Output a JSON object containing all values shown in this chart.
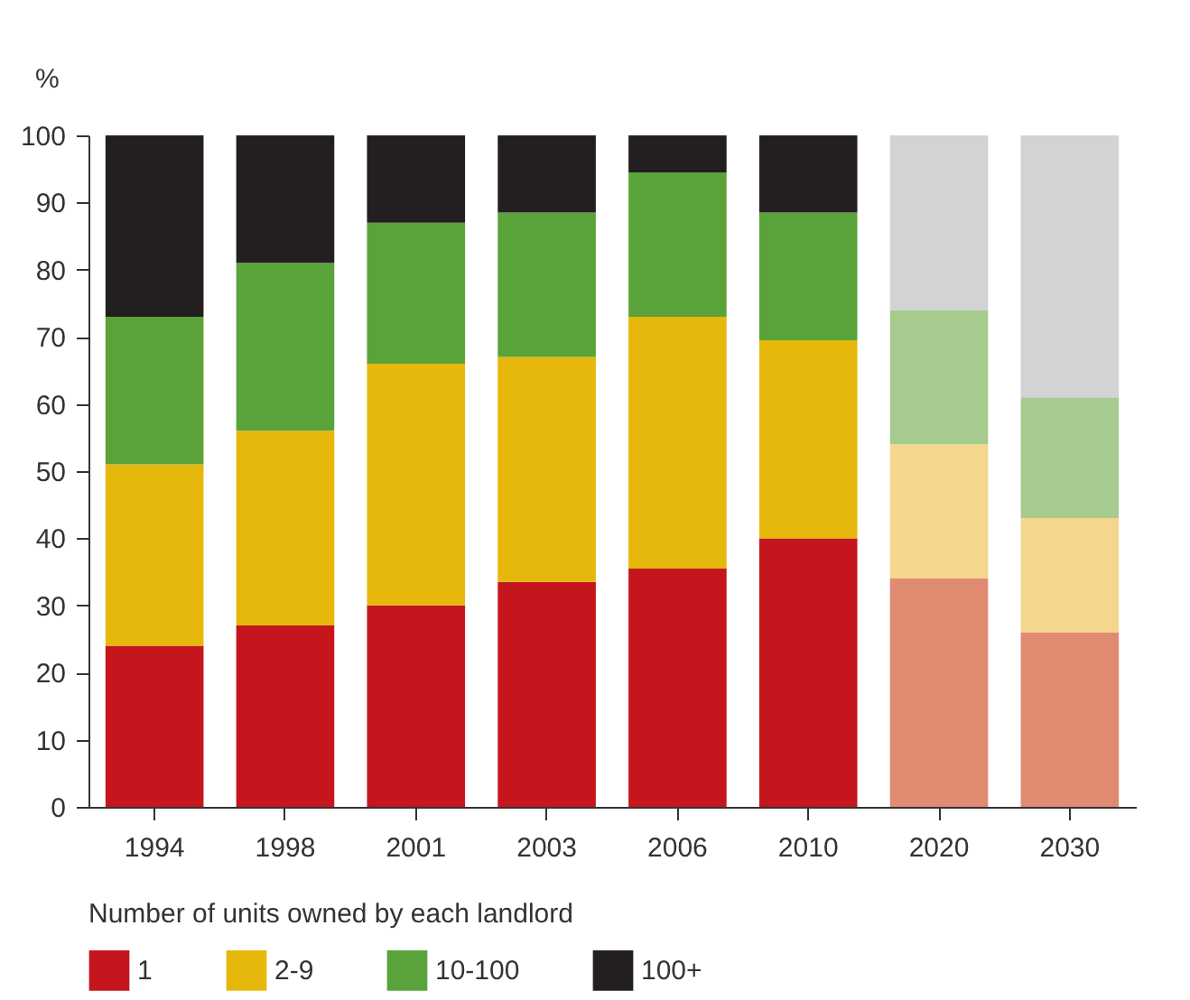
{
  "chart_data": {
    "type": "bar",
    "stacked": true,
    "ylabel": "%",
    "legend_title": "Number of units owned by each landlord",
    "legend": "bottom",
    "grid": false,
    "categories": [
      "1994",
      "1998",
      "2001",
      "2003",
      "2006",
      "2010",
      "2020",
      "2030"
    ],
    "ylim": [
      0,
      100
    ],
    "yticks": [
      0,
      10,
      20,
      30,
      40,
      50,
      60,
      70,
      80,
      90,
      100
    ],
    "series": [
      {
        "name": "1",
        "color": "#c5161d",
        "colors": [
          "#c5161d",
          "#c5161d",
          "#c5161d",
          "#c5161d",
          "#c5161d",
          "#c5161d",
          "#e08a72",
          "#e08a72"
        ],
        "values": [
          24,
          27,
          30,
          33.5,
          35.5,
          40,
          34,
          26
        ]
      },
      {
        "name": "2-9",
        "color": "#e6b80b",
        "colors": [
          "#e6b80b",
          "#e6b80b",
          "#e6b80b",
          "#e6b80b",
          "#e6b80b",
          "#e6b80b",
          "#f4d78c",
          "#f4d78c"
        ],
        "values": [
          27,
          29,
          36,
          33.5,
          37.5,
          29.5,
          20,
          17
        ]
      },
      {
        "name": "10-100",
        "color": "#5aa33a",
        "colors": [
          "#5aa33a",
          "#5aa33a",
          "#5aa33a",
          "#5aa33a",
          "#5aa33a",
          "#5aa33a",
          "#a7cb8f",
          "#a7cb8f"
        ],
        "values": [
          22,
          25,
          21,
          21.5,
          21.5,
          19,
          20,
          18
        ]
      },
      {
        "name": "100+",
        "color": "#231f20",
        "colors": [
          "#231f20",
          "#231f20",
          "#231f20",
          "#231f20",
          "#231f20",
          "#231f20",
          "#d2d3d5",
          "#d2d3d5"
        ],
        "values": [
          27,
          19,
          13,
          11.5,
          5.5,
          11.5,
          26,
          39
        ]
      }
    ]
  }
}
